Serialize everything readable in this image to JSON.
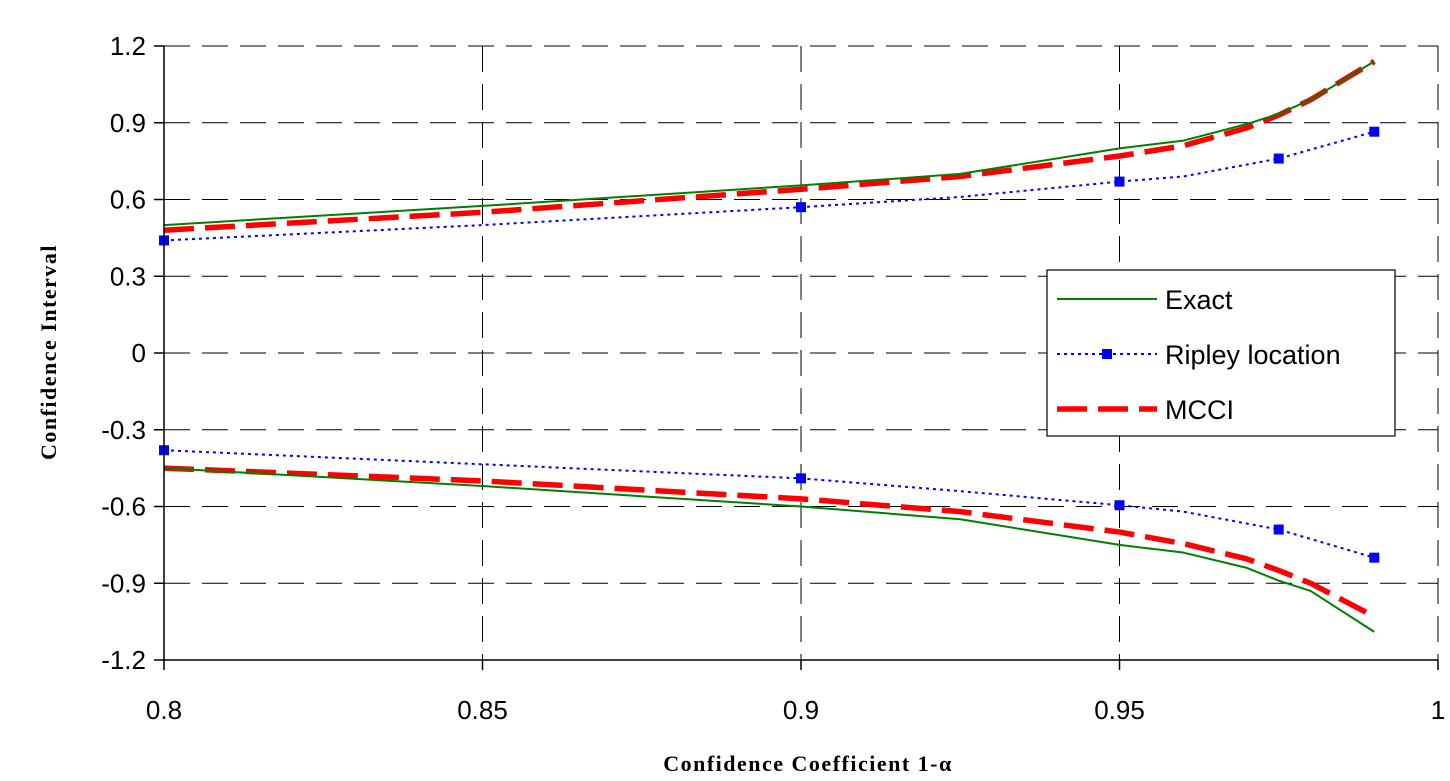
{
  "chart_data": {
    "type": "line",
    "xlabel": "Confidence Coefficient 1-α",
    "ylabel": "Confidence Interval",
    "xlim": [
      0.8,
      1.0
    ],
    "ylim": [
      -1.2,
      1.2
    ],
    "xticks": [
      0.8,
      0.85,
      0.9,
      0.95,
      1.0
    ],
    "xtick_labels": [
      "0.8",
      "0.85",
      "0.9",
      "0.95",
      "1"
    ],
    "yticks": [
      1.2,
      0.9,
      0.6,
      0.3,
      0,
      -0.3,
      -0.6,
      -0.9,
      -1.2
    ],
    "ytick_labels": [
      "1.2",
      "0.9",
      "0.6",
      "0.3",
      "0",
      "-0.3",
      "-0.6",
      "-0.9",
      "-1.2"
    ],
    "grid": true,
    "legend_position": "right",
    "series": [
      {
        "name": "Exact",
        "color": "#008000",
        "style": "solid",
        "upper": [
          [
            0.8,
            0.5
          ],
          [
            0.85,
            0.575
          ],
          [
            0.9,
            0.655
          ],
          [
            0.925,
            0.7
          ],
          [
            0.95,
            0.8
          ],
          [
            0.96,
            0.83
          ],
          [
            0.97,
            0.895
          ],
          [
            0.975,
            0.935
          ],
          [
            0.98,
            0.99
          ],
          [
            0.99,
            1.14
          ]
        ],
        "lower": [
          [
            0.8,
            -0.45
          ],
          [
            0.85,
            -0.52
          ],
          [
            0.9,
            -0.6
          ],
          [
            0.925,
            -0.65
          ],
          [
            0.95,
            -0.75
          ],
          [
            0.96,
            -0.78
          ],
          [
            0.97,
            -0.84
          ],
          [
            0.975,
            -0.89
          ],
          [
            0.98,
            -0.93
          ],
          [
            0.99,
            -1.09
          ]
        ]
      },
      {
        "name": "Ripley location",
        "color": "#0000ff",
        "style": "dotted",
        "upper": [
          [
            0.8,
            0.44
          ],
          [
            0.85,
            0.5
          ],
          [
            0.9,
            0.57
          ],
          [
            0.925,
            0.61
          ],
          [
            0.95,
            0.67
          ],
          [
            0.96,
            0.69
          ],
          [
            0.975,
            0.76
          ],
          [
            0.99,
            0.865
          ]
        ],
        "lower": [
          [
            0.8,
            -0.38
          ],
          [
            0.85,
            -0.435
          ],
          [
            0.9,
            -0.49
          ],
          [
            0.925,
            -0.54
          ],
          [
            0.95,
            -0.595
          ],
          [
            0.96,
            -0.62
          ],
          [
            0.975,
            -0.69
          ],
          [
            0.99,
            -0.8
          ]
        ],
        "markers": {
          "upper": [
            [
              0.8,
              0.44
            ],
            [
              0.9,
              0.57
            ],
            [
              0.95,
              0.67
            ],
            [
              0.975,
              0.76
            ],
            [
              0.99,
              0.865
            ]
          ],
          "lower": [
            [
              0.8,
              -0.38
            ],
            [
              0.9,
              -0.49
            ],
            [
              0.95,
              -0.595
            ],
            [
              0.975,
              -0.69
            ],
            [
              0.99,
              -0.8
            ]
          ]
        }
      },
      {
        "name": "MCCI",
        "color": "#ff0000",
        "style": "dashed",
        "upper": [
          [
            0.8,
            0.48
          ],
          [
            0.85,
            0.55
          ],
          [
            0.9,
            0.64
          ],
          [
            0.925,
            0.69
          ],
          [
            0.95,
            0.77
          ],
          [
            0.96,
            0.81
          ],
          [
            0.97,
            0.88
          ],
          [
            0.975,
            0.93
          ],
          [
            0.98,
            0.99
          ],
          [
            0.99,
            1.14
          ]
        ],
        "lower": [
          [
            0.8,
            -0.45
          ],
          [
            0.85,
            -0.5
          ],
          [
            0.9,
            -0.57
          ],
          [
            0.925,
            -0.62
          ],
          [
            0.95,
            -0.7
          ],
          [
            0.96,
            -0.745
          ],
          [
            0.97,
            -0.805
          ],
          [
            0.975,
            -0.85
          ],
          [
            0.98,
            -0.9
          ],
          [
            0.99,
            -1.03
          ]
        ]
      }
    ]
  }
}
